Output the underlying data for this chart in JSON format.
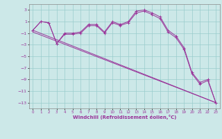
{
  "xlabel": "Windchill (Refroidissement éolien,°C)",
  "background_color": "#cce8e8",
  "line_color": "#993399",
  "xlim": [
    -0.5,
    23.5
  ],
  "ylim": [
    -14,
    4
  ],
  "yticks": [
    3,
    1,
    -1,
    -3,
    -5,
    -7,
    -9,
    -11,
    -13
  ],
  "xticks": [
    0,
    1,
    2,
    3,
    4,
    5,
    6,
    7,
    8,
    9,
    10,
    11,
    12,
    13,
    14,
    15,
    16,
    17,
    18,
    19,
    20,
    21,
    22,
    23
  ],
  "grid_color": "#99cccc",
  "series": [
    {
      "x": [
        0,
        1,
        2,
        3,
        4,
        5,
        6,
        7,
        8,
        9,
        10,
        11,
        12,
        13,
        14,
        15,
        16,
        17,
        18,
        19,
        20,
        21,
        22,
        23
      ],
      "y": [
        -0.5,
        1.0,
        0.8,
        -2.8,
        -1.0,
        -1.0,
        -0.8,
        0.5,
        0.5,
        -0.8,
        1.0,
        0.5,
        1.0,
        2.8,
        3.0,
        2.5,
        1.8,
        -0.5,
        -1.5,
        -3.5,
        -7.8,
        -9.5,
        -9.0,
        -13.0
      ],
      "marker": true
    },
    {
      "x": [
        0,
        1,
        2,
        3,
        4,
        5,
        6,
        7,
        8,
        9,
        10,
        11,
        12,
        13,
        14,
        15,
        16,
        17,
        18,
        19,
        20,
        21,
        22,
        23
      ],
      "y": [
        -0.5,
        1.0,
        0.8,
        -2.8,
        -1.2,
        -1.2,
        -1.0,
        0.3,
        0.3,
        -1.0,
        0.8,
        0.3,
        0.8,
        2.5,
        2.8,
        2.2,
        1.5,
        -0.8,
        -1.8,
        -3.8,
        -8.0,
        -9.8,
        -9.2,
        -13.0
      ],
      "marker": true
    },
    {
      "x": [
        0,
        23
      ],
      "y": [
        -0.5,
        -13.0
      ],
      "marker": false
    },
    {
      "x": [
        0,
        23
      ],
      "y": [
        -0.8,
        -13.0
      ],
      "marker": false
    }
  ]
}
